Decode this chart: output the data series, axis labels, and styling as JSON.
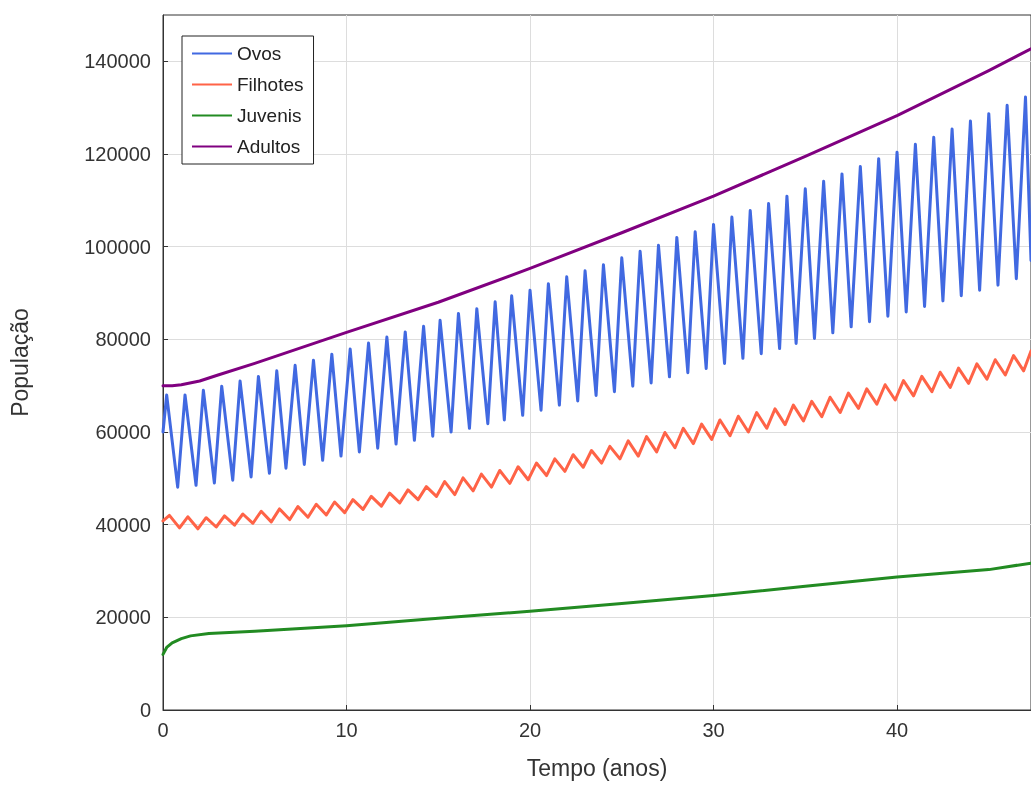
{
  "chart_data": {
    "type": "line",
    "xlabel": "Tempo (anos)",
    "ylabel": "População",
    "xlim": [
      0,
      47.3
    ],
    "xticks": [
      0,
      10,
      20,
      30,
      40
    ],
    "ylim": [
      0,
      150000
    ],
    "yticks": [
      0,
      20000,
      40000,
      60000,
      80000,
      100000,
      120000,
      140000
    ],
    "grid": true,
    "legend": "top left",
    "marker": "none",
    "line_style": "solid",
    "series": [
      {
        "name": "Ovos",
        "color": "#4169e1",
        "x": [
          0,
          0.2,
          0.8,
          1.2,
          1.8,
          2.2,
          2.8,
          3.2,
          3.8,
          4.2,
          4.8,
          5.2,
          5.8,
          6.2,
          6.7,
          7.2,
          7.7,
          8.2,
          8.7,
          9.2,
          9.7,
          10.2,
          10.7,
          11.2,
          11.7,
          12.2,
          12.7,
          13.2,
          13.7,
          14.2,
          14.7,
          15.1,
          15.7,
          16.1,
          16.7,
          17.1,
          17.7,
          18.1,
          18.6,
          19,
          19.6,
          20,
          20.6,
          21,
          21.6,
          22,
          22.6,
          23,
          23.6,
          24,
          24.6,
          25,
          25.6,
          26,
          26.6,
          27,
          27.6,
          28,
          28.6,
          29,
          29.6,
          30,
          30.6,
          31,
          31.6,
          32,
          32.6,
          33,
          33.6,
          34,
          34.5,
          35,
          35.5,
          36,
          36.5,
          37,
          37.5,
          38,
          38.5,
          39,
          39.5,
          40,
          40.5,
          41,
          41.5,
          42,
          42.5,
          43,
          43.5,
          44,
          44.5,
          45,
          45.5,
          46,
          46.5,
          47,
          47.3
        ],
        "values": [
          60000,
          68000,
          48100,
          68000,
          48500,
          69000,
          49000,
          69900,
          49600,
          71000,
          50300,
          72000,
          51100,
          73200,
          52200,
          74400,
          53000,
          75500,
          53900,
          76800,
          54800,
          77900,
          55700,
          79200,
          56500,
          80500,
          57400,
          81600,
          58200,
          82800,
          59100,
          84100,
          60000,
          85600,
          60800,
          86600,
          61800,
          88100,
          62600,
          89400,
          63600,
          90600,
          64700,
          92000,
          65800,
          93500,
          66700,
          94800,
          67900,
          96100,
          68700,
          97600,
          69900,
          99000,
          70600,
          100300,
          71900,
          102000,
          72800,
          103200,
          73700,
          104800,
          74800,
          106400,
          75900,
          107800,
          76900,
          109300,
          78000,
          110900,
          79100,
          112500,
          80200,
          114100,
          81400,
          115700,
          82700,
          117300,
          83800,
          119000,
          85000,
          120400,
          85900,
          122100,
          87100,
          123600,
          88300,
          125400,
          89400,
          127100,
          90600,
          128700,
          91700,
          130500,
          93100,
          132300,
          97000
        ]
      },
      {
        "name": "Filhotes",
        "color": "#ff6347",
        "x": [
          0,
          0.35,
          0.9,
          1.35,
          1.9,
          2.35,
          2.9,
          3.35,
          3.9,
          4.35,
          4.9,
          5.35,
          5.9,
          6.35,
          6.9,
          7.35,
          7.9,
          8.35,
          8.9,
          9.35,
          9.9,
          10.35,
          10.9,
          11.35,
          11.9,
          12.35,
          12.9,
          13.35,
          13.9,
          14.35,
          14.9,
          15.35,
          15.9,
          16.35,
          16.9,
          17.35,
          17.9,
          18.35,
          18.9,
          19.35,
          19.9,
          20.35,
          20.9,
          21.35,
          21.9,
          22.35,
          22.9,
          23.35,
          23.9,
          24.35,
          24.9,
          25.35,
          25.9,
          26.35,
          26.9,
          27.35,
          27.9,
          28.35,
          28.9,
          29.35,
          29.9,
          30.35,
          30.9,
          31.35,
          31.9,
          32.35,
          32.9,
          33.35,
          33.9,
          34.35,
          34.9,
          35.35,
          35.9,
          36.35,
          36.9,
          37.35,
          37.9,
          38.35,
          38.9,
          39.35,
          39.9,
          40.35,
          40.9,
          41.35,
          41.9,
          42.35,
          42.9,
          43.35,
          43.9,
          44.35,
          44.9,
          45.35,
          45.9,
          46.35,
          46.9,
          47.3
        ],
        "values": [
          40800,
          42000,
          39300,
          41700,
          39100,
          41500,
          39500,
          41900,
          39900,
          42300,
          40300,
          42900,
          40600,
          43400,
          41100,
          43900,
          41600,
          44400,
          42100,
          44900,
          42600,
          45400,
          43300,
          46100,
          44000,
          46800,
          44700,
          47500,
          45400,
          48200,
          46100,
          49300,
          46500,
          50100,
          47300,
          50900,
          48100,
          51700,
          48900,
          52500,
          49700,
          53300,
          50600,
          54200,
          51500,
          55100,
          52400,
          56000,
          53300,
          56900,
          54200,
          58100,
          54800,
          59000,
          55700,
          59900,
          56600,
          60800,
          57500,
          61700,
          58400,
          62600,
          59200,
          63400,
          60000,
          64200,
          60800,
          65000,
          61600,
          65800,
          62400,
          66600,
          63300,
          67500,
          64200,
          68400,
          65100,
          69300,
          66000,
          70200,
          66900,
          71100,
          67800,
          72000,
          68700,
          72900,
          69600,
          73800,
          70500,
          74700,
          71400,
          75600,
          72300,
          76500,
          73200,
          77500
        ]
      },
      {
        "name": "Juvenis",
        "color": "#228b22",
        "x": [
          0,
          0.2,
          0.5,
          1,
          1.5,
          2.5,
          5,
          10,
          15,
          20,
          25,
          30,
          35,
          40,
          45,
          47.3
        ],
        "values": [
          12000,
          13500,
          14500,
          15400,
          16000,
          16500,
          17000,
          18200,
          19800,
          21300,
          23000,
          24700,
          26700,
          28700,
          30300,
          31700
        ]
      },
      {
        "name": "Adultos",
        "color": "#800080",
        "x": [
          0,
          0.5,
          1,
          2,
          3,
          5,
          10,
          15,
          20,
          25,
          30,
          35,
          40,
          45,
          47.3
        ],
        "values": [
          70000,
          70000,
          70200,
          71000,
          72300,
          74800,
          81500,
          88000,
          95300,
          103000,
          110900,
          119500,
          128300,
          138000,
          142700
        ]
      }
    ]
  }
}
